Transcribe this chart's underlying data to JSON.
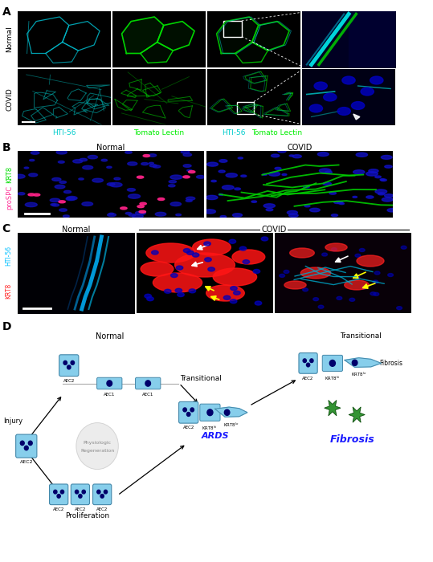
{
  "panel_A_label": "A",
  "panel_B_label": "B",
  "panel_C_label": "C",
  "panel_D_label": "D",
  "hti56_color": "#00CCCC",
  "tomato_color": "#00EE00",
  "krt8_color": "#00EE00",
  "proSPC_color": "#FF3399",
  "hti56_C_color": "#00BFFF",
  "krt8_C_color": "#FF2020",
  "nucleus_blue": "#0000CC",
  "ards_color": "#1a1aff",
  "fibrosis_color": "#1a1aff",
  "cell_color_light": "#87CEEB",
  "nucleus_color": "#00008B",
  "fibroblast_color": "#228B22"
}
